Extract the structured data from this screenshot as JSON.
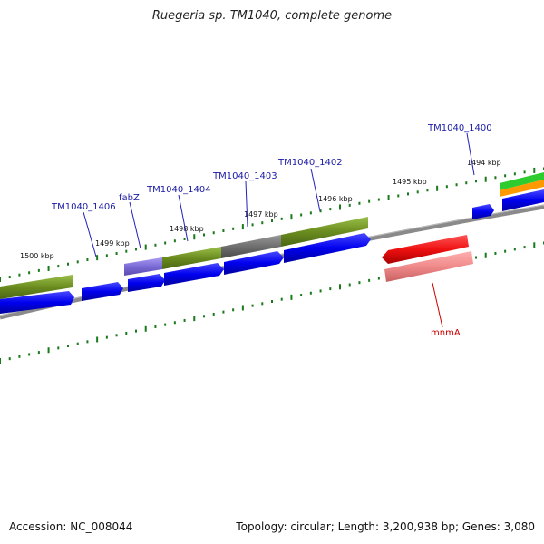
{
  "title": "Ruegeria sp. TM1040, complete genome",
  "footer": {
    "accession": "Accession: NC_008044",
    "summary": "Topology: circular; Length: 3,200,938 bp; Genes: 3,080"
  },
  "colors": {
    "cds": "#0000ee",
    "gene_label": "#1a1aa6",
    "rna": "#dd1111",
    "rna_label": "#cc0000",
    "olive": "#6b8c1f",
    "purple": "#7a6ad6",
    "gray": "#6e6e6e",
    "pink": "#f08a8a",
    "green": "#2ecc2e",
    "orange": "#ff9900",
    "backbone": "#8a8a8a",
    "tick": "#1a7a1a"
  },
  "scale_labels": [
    "1494 kbp",
    "1495 kbp",
    "1496 kbp",
    "1497 kbp",
    "1498 kbp",
    "1499 kbp",
    "1500 kbp"
  ],
  "gene_labels": [
    "TM1040_1400",
    "TM1040_1402",
    "TM1040_1403",
    "TM1040_1404",
    "fabZ",
    "TM1040_1406"
  ],
  "rna_label": "mnmA"
}
